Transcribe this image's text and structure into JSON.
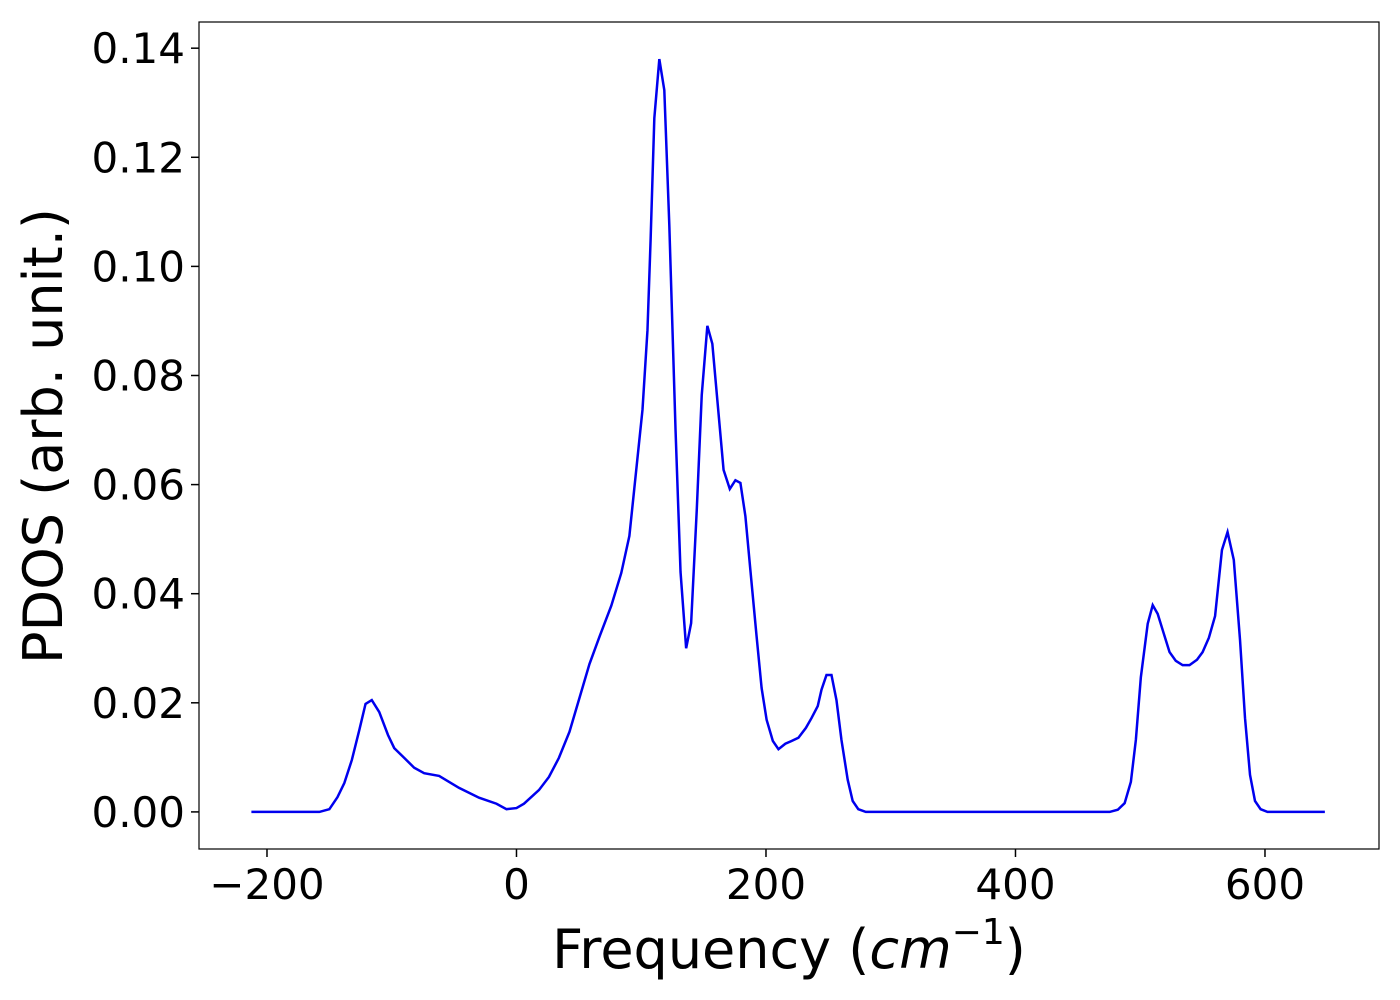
{
  "chart_data": {
    "type": "line",
    "xlabel_parts": [
      "Frequency (",
      "cm",
      "−1",
      ")"
    ],
    "ylabel": "PDOS (arb. unit.)",
    "xlim": [
      -254.5,
      691.4
    ],
    "ylim": [
      -0.0068,
      0.1448
    ],
    "xticks": [
      {
        "value": -200,
        "label": "−200"
      },
      0,
      200,
      400,
      600
    ],
    "yticks": [
      {
        "value": 0,
        "label": "0.00"
      },
      {
        "value": 0.02,
        "label": "0.02"
      },
      {
        "value": 0.04,
        "label": "0.04"
      },
      {
        "value": 0.06,
        "label": "0.06"
      },
      {
        "value": 0.08,
        "label": "0.08"
      },
      {
        "value": 0.1,
        "label": "0.10"
      },
      {
        "value": 0.12,
        "label": "0.12"
      },
      {
        "value": 0.14,
        "label": "0.14"
      }
    ],
    "x": [
      -212.5,
      -158,
      -150,
      -143.5,
      -138,
      -132,
      -126,
      -121,
      -116,
      -110,
      -103,
      -98,
      -90,
      -82,
      -74,
      -62,
      -46,
      -30,
      -16,
      -8,
      0,
      6,
      18,
      26,
      34,
      42.5,
      50.5,
      58.5,
      66.5,
      76,
      84,
      90.5,
      96,
      101,
      105,
      107.5,
      110.5,
      114.5,
      118.5,
      122.5,
      127.5,
      131.5,
      136,
      140,
      144.5,
      148.5,
      153,
      157,
      161,
      166,
      171,
      175.5,
      179.5,
      183.5,
      187.5,
      192.5,
      196.5,
      200.5,
      205.5,
      210,
      215.5,
      220.5,
      226,
      232,
      236.5,
      241.5,
      244.5,
      248.5,
      252.5,
      256.5,
      260.5,
      265.5,
      269.5,
      274,
      280,
      475.5,
      482,
      487.5,
      492.5,
      496.5,
      500.5,
      506,
      510,
      514,
      519,
      523.5,
      528.5,
      534,
      539.5,
      545.5,
      550,
      555,
      560,
      565.5,
      570,
      575,
      580,
      584,
      588,
      592,
      596.5,
      602,
      648
    ],
    "series": [
      {
        "name": "PDOS",
        "color": "#0000ee",
        "values": [
          0,
          0,
          0.0005,
          0.0027,
          0.0053,
          0.0095,
          0.015,
          0.0198,
          0.0205,
          0.0183,
          0.0141,
          0.0117,
          0.0099,
          0.0081,
          0.0071,
          0.0066,
          0.0044,
          0.0026,
          0.0015,
          0.0005,
          0.0007,
          0.0015,
          0.004,
          0.0064,
          0.0099,
          0.0147,
          0.0209,
          0.0271,
          0.0321,
          0.0378,
          0.0438,
          0.0506,
          0.0627,
          0.0737,
          0.0883,
          0.1048,
          0.1272,
          0.138,
          0.1323,
          0.1076,
          0.07,
          0.044,
          0.03,
          0.0346,
          0.0553,
          0.0764,
          0.0891,
          0.0858,
          0.0755,
          0.0627,
          0.0592,
          0.0608,
          0.0603,
          0.0542,
          0.0443,
          0.0321,
          0.0227,
          0.0169,
          0.013,
          0.0115,
          0.0125,
          0.013,
          0.0136,
          0.0154,
          0.0172,
          0.0194,
          0.0224,
          0.0251,
          0.0251,
          0.0205,
          0.0132,
          0.0059,
          0.002,
          0.0005,
          0,
          0,
          0.0004,
          0.0016,
          0.0055,
          0.0132,
          0.0247,
          0.0345,
          0.0379,
          0.0363,
          0.0326,
          0.0293,
          0.0277,
          0.0269,
          0.0269,
          0.0279,
          0.0293,
          0.0319,
          0.0359,
          0.048,
          0.0513,
          0.0462,
          0.0315,
          0.0172,
          0.0068,
          0.002,
          0.0005,
          0,
          0
        ]
      }
    ]
  }
}
